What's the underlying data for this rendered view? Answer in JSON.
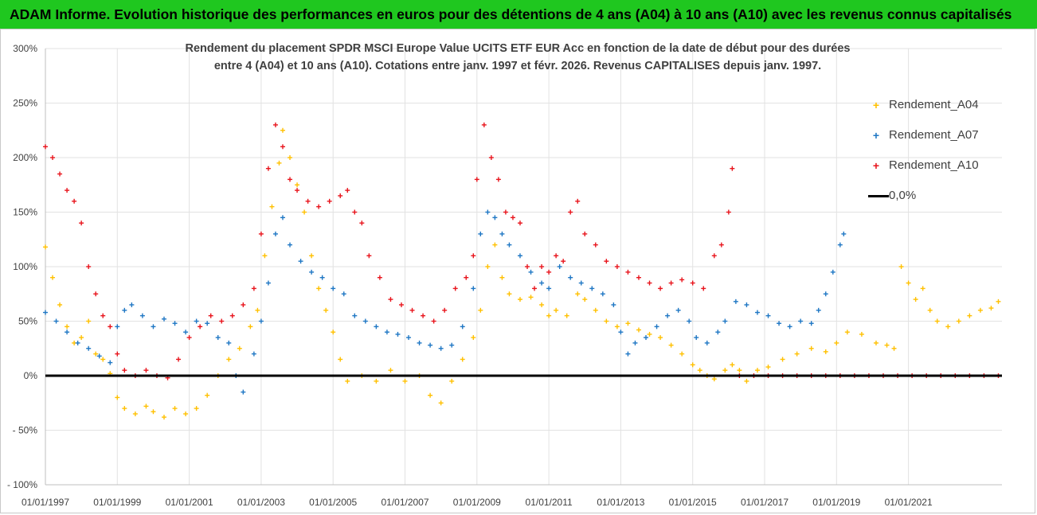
{
  "banner": {
    "text": "ADAM Informe. Evolution historique des performances en euros pour des détentions de 4 ans (A04) à 10 ans (A10) avec les revenus connus capitalisés",
    "color": "#1fc71f"
  },
  "chart_data": {
    "type": "scatter",
    "title_line1": "Rendement du placement SPDR MSCI Europe Value UCITS ETF EUR Acc en fonction de la date de début pour des durées",
    "title_line2": "entre 4 (A04) et 10 ans (A10). Cotations entre janv. 1997 et févr. 2026. Revenus CAPITALISES depuis janv. 1997.",
    "xlabel": "",
    "ylabel": "",
    "xlim": [
      1997.0,
      2023.6
    ],
    "ylim": [
      -100,
      300
    ],
    "y_ticks": [
      -100,
      -50,
      0,
      50,
      100,
      150,
      200,
      250,
      300
    ],
    "y_tick_labels": [
      "- 100%",
      "- 50%",
      "0%",
      "50%",
      "100%",
      "150%",
      "200%",
      "250%",
      "300%"
    ],
    "x_ticks": [
      1997,
      1999,
      2001,
      2003,
      2005,
      2007,
      2009,
      2011,
      2013,
      2015,
      2017,
      2019,
      2021
    ],
    "x_tick_labels": [
      "01/01/1997",
      "01/01/1999",
      "01/01/2001",
      "01/01/2003",
      "01/01/2005",
      "01/01/2007",
      "01/01/2009",
      "01/01/2011",
      "01/01/2013",
      "01/01/2015",
      "01/01/2017",
      "01/01/2019",
      "01/01/2021"
    ],
    "grid": true,
    "legend_position": "right",
    "series": [
      {
        "name": "Rendement_A04",
        "color": "#ffc000",
        "marker": "+",
        "points": [
          [
            1997.0,
            118
          ],
          [
            1997.2,
            90
          ],
          [
            1997.4,
            65
          ],
          [
            1997.6,
            45
          ],
          [
            1997.8,
            30
          ],
          [
            1998.0,
            35
          ],
          [
            1998.2,
            50
          ],
          [
            1998.4,
            20
          ],
          [
            1998.6,
            15
          ],
          [
            1998.8,
            2
          ],
          [
            1999.0,
            -20
          ],
          [
            1999.2,
            -30
          ],
          [
            1999.5,
            -35
          ],
          [
            1999.8,
            -28
          ],
          [
            2000.0,
            -33
          ],
          [
            2000.3,
            -38
          ],
          [
            2000.6,
            -30
          ],
          [
            2000.9,
            -35
          ],
          [
            2001.2,
            -30
          ],
          [
            2001.5,
            -18
          ],
          [
            2001.8,
            0
          ],
          [
            2002.1,
            15
          ],
          [
            2002.4,
            25
          ],
          [
            2002.7,
            45
          ],
          [
            2002.9,
            60
          ],
          [
            2003.1,
            110
          ],
          [
            2003.3,
            155
          ],
          [
            2003.5,
            195
          ],
          [
            2003.6,
            225
          ],
          [
            2003.8,
            200
          ],
          [
            2004.0,
            175
          ],
          [
            2004.2,
            150
          ],
          [
            2004.4,
            110
          ],
          [
            2004.6,
            80
          ],
          [
            2004.8,
            60
          ],
          [
            2005.0,
            40
          ],
          [
            2005.2,
            15
          ],
          [
            2005.4,
            -5
          ],
          [
            2005.8,
            0
          ],
          [
            2006.2,
            -5
          ],
          [
            2006.6,
            5
          ],
          [
            2007.0,
            -5
          ],
          [
            2007.4,
            0
          ],
          [
            2007.7,
            -18
          ],
          [
            2008.0,
            -25
          ],
          [
            2008.3,
            -5
          ],
          [
            2008.6,
            15
          ],
          [
            2008.9,
            35
          ],
          [
            2009.1,
            60
          ],
          [
            2009.3,
            100
          ],
          [
            2009.5,
            120
          ],
          [
            2009.7,
            90
          ],
          [
            2009.9,
            75
          ],
          [
            2010.2,
            70
          ],
          [
            2010.5,
            72
          ],
          [
            2010.8,
            65
          ],
          [
            2011.0,
            55
          ],
          [
            2011.2,
            60
          ],
          [
            2011.5,
            55
          ],
          [
            2011.8,
            75
          ],
          [
            2012.0,
            70
          ],
          [
            2012.3,
            60
          ],
          [
            2012.6,
            50
          ],
          [
            2012.9,
            45
          ],
          [
            2013.2,
            48
          ],
          [
            2013.5,
            42
          ],
          [
            2013.8,
            38
          ],
          [
            2014.1,
            35
          ],
          [
            2014.4,
            28
          ],
          [
            2014.7,
            20
          ],
          [
            2015.0,
            10
          ],
          [
            2015.2,
            5
          ],
          [
            2015.4,
            0
          ],
          [
            2015.6,
            -3
          ],
          [
            2015.9,
            5
          ],
          [
            2016.1,
            10
          ],
          [
            2016.3,
            5
          ],
          [
            2016.5,
            -5
          ],
          [
            2016.8,
            5
          ],
          [
            2017.1,
            8
          ],
          [
            2017.5,
            15
          ],
          [
            2017.9,
            20
          ],
          [
            2018.3,
            25
          ],
          [
            2018.7,
            22
          ],
          [
            2019.0,
            30
          ],
          [
            2019.3,
            40
          ],
          [
            2019.7,
            38
          ],
          [
            2020.1,
            30
          ],
          [
            2020.4,
            28
          ],
          [
            2020.6,
            25
          ],
          [
            2020.8,
            100
          ],
          [
            2021.0,
            85
          ],
          [
            2021.2,
            70
          ],
          [
            2021.4,
            80
          ],
          [
            2021.6,
            60
          ],
          [
            2021.8,
            50
          ],
          [
            2022.1,
            45
          ],
          [
            2022.4,
            50
          ],
          [
            2022.7,
            55
          ],
          [
            2023.0,
            60
          ],
          [
            2023.3,
            62
          ],
          [
            2023.5,
            68
          ]
        ]
      },
      {
        "name": "Rendement_A07",
        "color": "#1f77c4",
        "marker": "+",
        "points": [
          [
            1997.0,
            58
          ],
          [
            1997.3,
            50
          ],
          [
            1997.6,
            40
          ],
          [
            1997.9,
            30
          ],
          [
            1998.2,
            25
          ],
          [
            1998.5,
            18
          ],
          [
            1998.8,
            12
          ],
          [
            1999.0,
            45
          ],
          [
            1999.2,
            60
          ],
          [
            1999.4,
            65
          ],
          [
            1999.7,
            55
          ],
          [
            2000.0,
            45
          ],
          [
            2000.3,
            52
          ],
          [
            2000.6,
            48
          ],
          [
            2000.9,
            40
          ],
          [
            2001.2,
            50
          ],
          [
            2001.5,
            48
          ],
          [
            2001.8,
            35
          ],
          [
            2002.1,
            30
          ],
          [
            2002.3,
            0
          ],
          [
            2002.5,
            -15
          ],
          [
            2002.8,
            20
          ],
          [
            2003.0,
            50
          ],
          [
            2003.2,
            85
          ],
          [
            2003.4,
            130
          ],
          [
            2003.6,
            145
          ],
          [
            2003.8,
            120
          ],
          [
            2004.1,
            105
          ],
          [
            2004.4,
            95
          ],
          [
            2004.7,
            90
          ],
          [
            2005.0,
            80
          ],
          [
            2005.3,
            75
          ],
          [
            2005.6,
            55
          ],
          [
            2005.9,
            50
          ],
          [
            2006.2,
            45
          ],
          [
            2006.5,
            40
          ],
          [
            2006.8,
            38
          ],
          [
            2007.1,
            35
          ],
          [
            2007.4,
            30
          ],
          [
            2007.7,
            28
          ],
          [
            2008.0,
            25
          ],
          [
            2008.3,
            28
          ],
          [
            2008.6,
            45
          ],
          [
            2008.9,
            80
          ],
          [
            2009.1,
            130
          ],
          [
            2009.3,
            150
          ],
          [
            2009.5,
            145
          ],
          [
            2009.7,
            130
          ],
          [
            2009.9,
            120
          ],
          [
            2010.2,
            110
          ],
          [
            2010.5,
            95
          ],
          [
            2010.8,
            85
          ],
          [
            2011.0,
            80
          ],
          [
            2011.3,
            100
          ],
          [
            2011.6,
            90
          ],
          [
            2011.9,
            85
          ],
          [
            2012.2,
            80
          ],
          [
            2012.5,
            75
          ],
          [
            2012.8,
            65
          ],
          [
            2013.0,
            40
          ],
          [
            2013.2,
            20
          ],
          [
            2013.4,
            30
          ],
          [
            2013.7,
            35
          ],
          [
            2014.0,
            45
          ],
          [
            2014.3,
            55
          ],
          [
            2014.6,
            60
          ],
          [
            2014.9,
            50
          ],
          [
            2015.1,
            35
          ],
          [
            2015.4,
            30
          ],
          [
            2015.7,
            40
          ],
          [
            2015.9,
            50
          ],
          [
            2016.2,
            68
          ],
          [
            2016.5,
            65
          ],
          [
            2016.8,
            58
          ],
          [
            2017.1,
            55
          ],
          [
            2017.4,
            48
          ],
          [
            2017.7,
            45
          ],
          [
            2018.0,
            50
          ],
          [
            2018.3,
            48
          ],
          [
            2018.5,
            60
          ],
          [
            2018.7,
            75
          ],
          [
            2018.9,
            95
          ],
          [
            2019.1,
            120
          ],
          [
            2019.2,
            130
          ]
        ]
      },
      {
        "name": "Rendement_A10",
        "color": "#e8141c",
        "marker": "+",
        "points": [
          [
            1997.0,
            210
          ],
          [
            1997.2,
            200
          ],
          [
            1997.4,
            185
          ],
          [
            1997.6,
            170
          ],
          [
            1997.8,
            160
          ],
          [
            1998.0,
            140
          ],
          [
            1998.2,
            100
          ],
          [
            1998.4,
            75
          ],
          [
            1998.6,
            55
          ],
          [
            1998.8,
            45
          ],
          [
            1999.0,
            20
          ],
          [
            1999.2,
            5
          ],
          [
            1999.5,
            0
          ],
          [
            1999.8,
            5
          ],
          [
            2000.1,
            0
          ],
          [
            2000.4,
            -2
          ],
          [
            2000.7,
            15
          ],
          [
            2001.0,
            35
          ],
          [
            2001.3,
            45
          ],
          [
            2001.6,
            55
          ],
          [
            2001.9,
            50
          ],
          [
            2002.2,
            55
          ],
          [
            2002.5,
            65
          ],
          [
            2002.8,
            80
          ],
          [
            2003.0,
            130
          ],
          [
            2003.2,
            190
          ],
          [
            2003.4,
            230
          ],
          [
            2003.6,
            210
          ],
          [
            2003.8,
            180
          ],
          [
            2004.0,
            170
          ],
          [
            2004.3,
            160
          ],
          [
            2004.6,
            155
          ],
          [
            2004.9,
            160
          ],
          [
            2005.2,
            165
          ],
          [
            2005.4,
            170
          ],
          [
            2005.6,
            150
          ],
          [
            2005.8,
            140
          ],
          [
            2006.0,
            110
          ],
          [
            2006.3,
            90
          ],
          [
            2006.6,
            70
          ],
          [
            2006.9,
            65
          ],
          [
            2007.2,
            60
          ],
          [
            2007.5,
            55
          ],
          [
            2007.8,
            50
          ],
          [
            2008.1,
            60
          ],
          [
            2008.4,
            80
          ],
          [
            2008.7,
            90
          ],
          [
            2008.9,
            110
          ],
          [
            2009.0,
            180
          ],
          [
            2009.2,
            230
          ],
          [
            2009.4,
            200
          ],
          [
            2009.6,
            180
          ],
          [
            2009.8,
            150
          ],
          [
            2010.0,
            145
          ],
          [
            2010.2,
            140
          ],
          [
            2010.4,
            100
          ],
          [
            2010.6,
            80
          ],
          [
            2010.8,
            100
          ],
          [
            2011.0,
            95
          ],
          [
            2011.2,
            110
          ],
          [
            2011.4,
            105
          ],
          [
            2011.6,
            150
          ],
          [
            2011.8,
            160
          ],
          [
            2012.0,
            130
          ],
          [
            2012.3,
            120
          ],
          [
            2012.6,
            105
          ],
          [
            2012.9,
            100
          ],
          [
            2013.2,
            95
          ],
          [
            2013.5,
            90
          ],
          [
            2013.8,
            85
          ],
          [
            2014.1,
            80
          ],
          [
            2014.4,
            85
          ],
          [
            2014.7,
            88
          ],
          [
            2015.0,
            85
          ],
          [
            2015.3,
            80
          ],
          [
            2015.6,
            110
          ],
          [
            2015.8,
            120
          ],
          [
            2016.0,
            150
          ],
          [
            2016.1,
            190
          ],
          [
            2016.3,
            0
          ],
          [
            2016.7,
            0
          ],
          [
            2017.1,
            0
          ],
          [
            2017.5,
            0
          ],
          [
            2017.9,
            0
          ],
          [
            2018.3,
            0
          ],
          [
            2018.7,
            0
          ],
          [
            2019.1,
            0
          ],
          [
            2019.5,
            0
          ],
          [
            2019.9,
            0
          ],
          [
            2020.3,
            0
          ],
          [
            2020.7,
            0
          ],
          [
            2021.1,
            0
          ],
          [
            2021.5,
            0
          ],
          [
            2021.9,
            0
          ],
          [
            2022.3,
            0
          ],
          [
            2022.7,
            0
          ],
          [
            2023.1,
            0
          ],
          [
            2023.5,
            0
          ]
        ]
      }
    ],
    "reference_line": {
      "name": "0,0%",
      "value": 0,
      "color": "#000000"
    }
  }
}
